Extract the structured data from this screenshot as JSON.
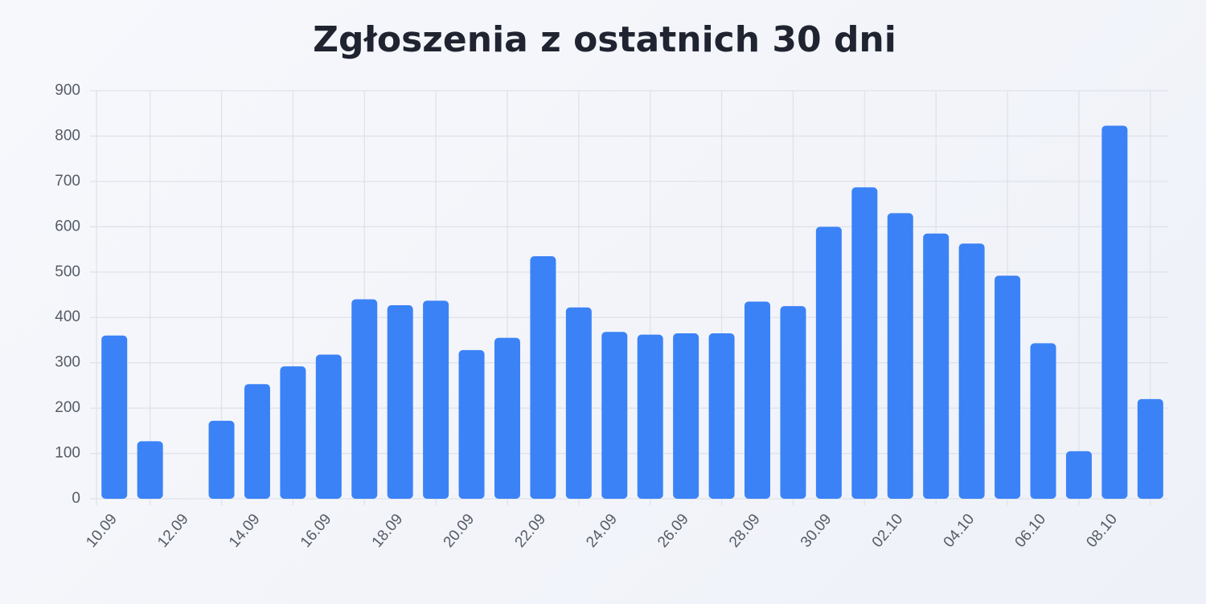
{
  "chart_data": {
    "type": "bar",
    "title": "Zgłoszenia z ostatnich 30 dni",
    "categories": [
      "10.09",
      null,
      "12.09",
      null,
      "14.09",
      null,
      "16.09",
      null,
      "18.09",
      null,
      "20.09",
      null,
      "22.09",
      null,
      "24.09",
      null,
      "26.09",
      null,
      "28.09",
      null,
      "30.09",
      null,
      "02.10",
      null,
      "04.10",
      null,
      "06.10",
      null,
      "08.10",
      null
    ],
    "values": [
      360,
      127,
      0,
      172,
      253,
      292,
      318,
      440,
      427,
      437,
      328,
      355,
      535,
      422,
      368,
      362,
      365,
      365,
      435,
      425,
      600,
      687,
      630,
      585,
      563,
      492,
      343,
      105,
      823,
      220
    ],
    "color": "#3b82f6",
    "ylim": [
      0,
      900
    ],
    "yticks": [
      0,
      100,
      200,
      300,
      400,
      500,
      600,
      700,
      800,
      900
    ],
    "grid": true
  }
}
